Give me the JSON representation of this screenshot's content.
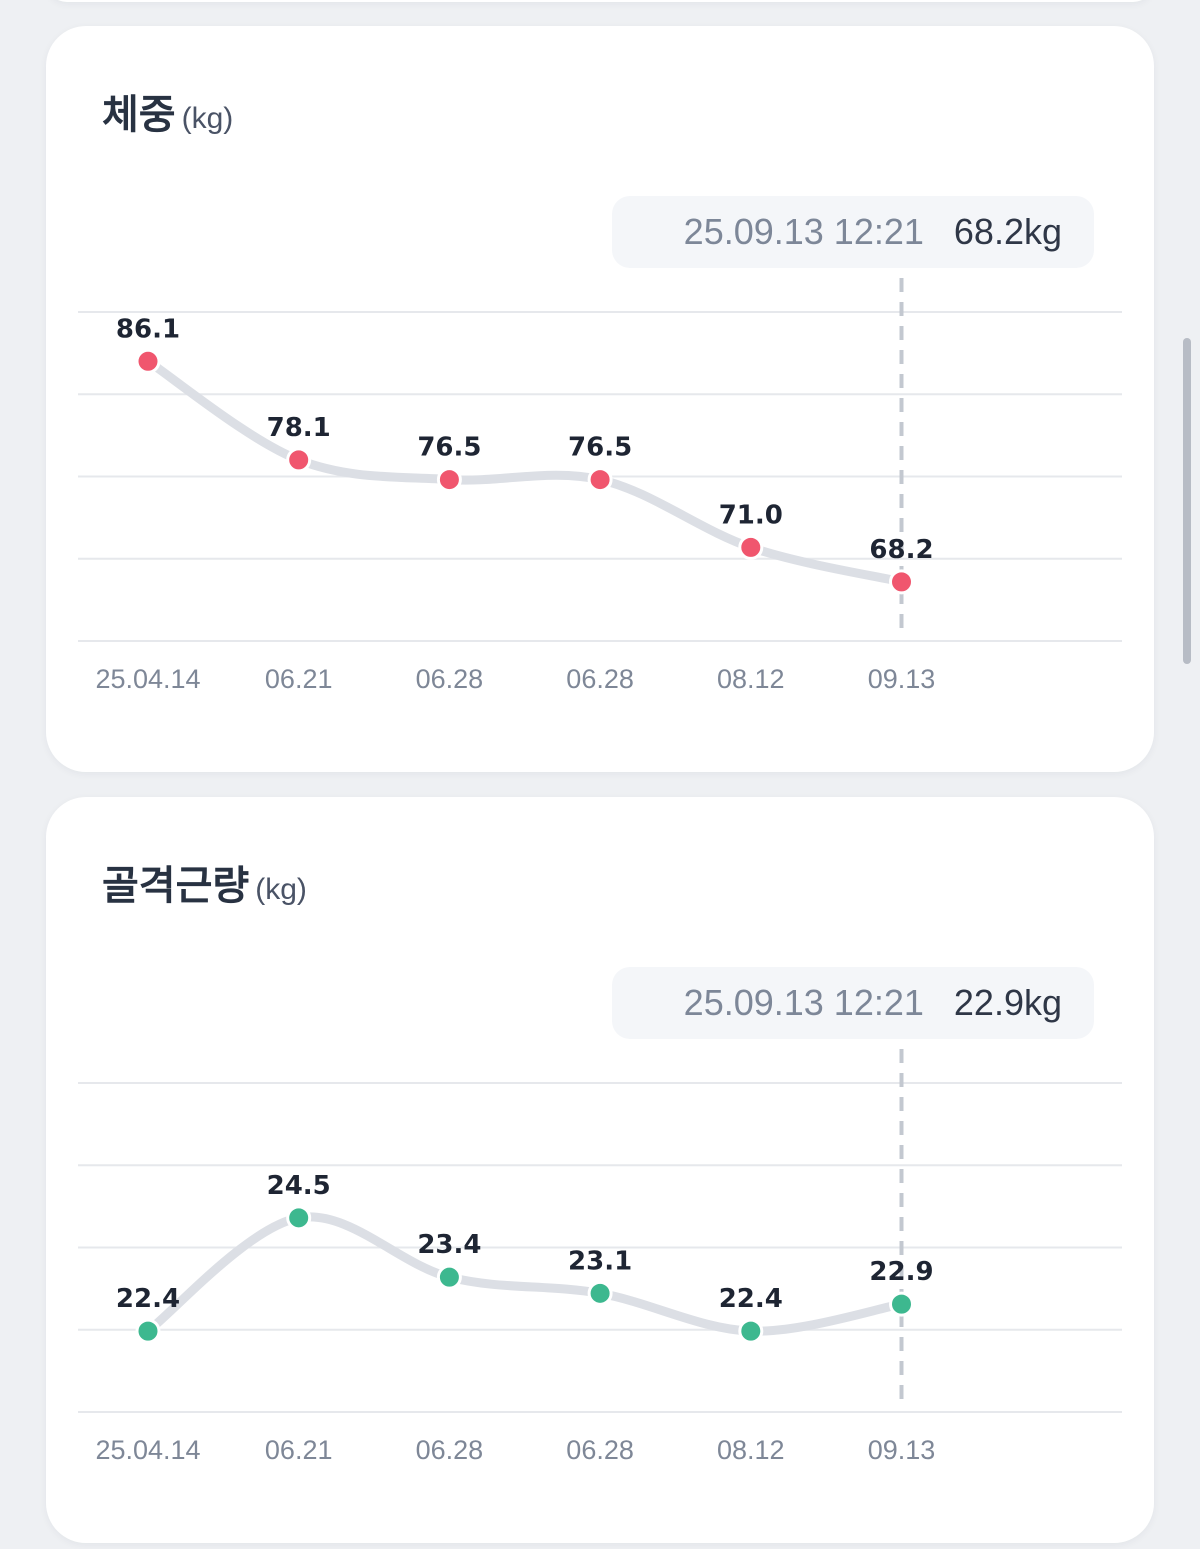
{
  "charts": [
    {
      "title": "체중",
      "unit": "(kg)",
      "tooltip": {
        "time": "25.09.13 12:21",
        "value": "68.2kg"
      },
      "color": "#f0566e"
    },
    {
      "title": "골격근량",
      "unit": "(kg)",
      "tooltip": {
        "time": "25.09.13 12:21",
        "value": "22.9kg"
      },
      "color": "#3db88f"
    }
  ],
  "chart_data": [
    {
      "type": "line",
      "title": "체중",
      "ylabel": "(kg)",
      "categories": [
        "25.04.14",
        "06.21",
        "06.28",
        "06.28",
        "08.12",
        "09.13"
      ],
      "values": [
        86.1,
        78.1,
        76.5,
        76.5,
        71.0,
        68.2
      ],
      "value_labels": [
        "86.1",
        "78.1",
        "76.5",
        "76.5",
        "71.0",
        "68.2"
      ],
      "ylim": [
        63.4,
        90.1
      ],
      "grid": true,
      "selected_index": 5
    },
    {
      "type": "line",
      "title": "골격근량",
      "ylabel": "(kg)",
      "categories": [
        "25.04.14",
        "06.21",
        "06.28",
        "06.28",
        "08.12",
        "09.13"
      ],
      "values": [
        22.4,
        24.5,
        23.4,
        23.1,
        22.4,
        22.9
      ],
      "value_labels": [
        "22.4",
        "24.5",
        "23.4",
        "23.1",
        "22.4",
        "22.9"
      ],
      "ylim": [
        20.9,
        27.0
      ],
      "grid": true,
      "selected_index": 5
    }
  ]
}
